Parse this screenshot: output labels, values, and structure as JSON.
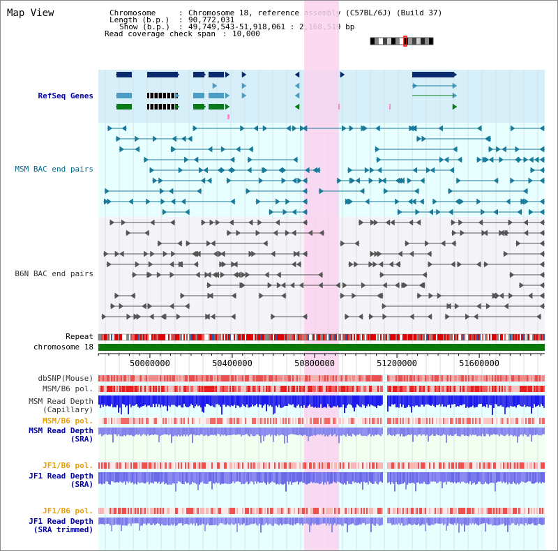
{
  "app": {
    "title": "Map View"
  },
  "header": {
    "chromosome_label": "Chromosome",
    "chromosome_value": "Chromosome 18, reference assembly (C57BL/6J) (Build 37)",
    "length_label": "Length (b.p.)",
    "length_value": "90,772,031",
    "show_label": "Show (b.p.)",
    "show_value": "49,749,543-51,918,061 : 2,168,519 bp",
    "coverage_label": "Read coverage check span",
    "coverage_value": "10,000",
    "sep": ":"
  },
  "colors": {
    "gene_band": "#d6eff9",
    "msm_band": "#e8ffff",
    "b6n_band": "#f4f4f8",
    "lower_band": "#e8ffff",
    "highlight": "#f9d2ee",
    "refseq_dark": "#0a2a6e",
    "refseq_light": "#4d9cc4",
    "refseq_black": "#000000",
    "refseq_green": "#0a7a1a",
    "msm_pair": "#1a7a9a",
    "b6n_pair": "#555555",
    "chrom_bar": "#0b7a0b",
    "label_blue": "#0000aa",
    "label_teal": "#00688b",
    "label_gray": "#333333",
    "label_orange": "#e8a000"
  },
  "tracks": {
    "refseq": "RefSeq Genes",
    "msm_bac": "MSM BAC end pairs",
    "b6n_bac": "B6N BAC end pairs",
    "repeat": "Repeat",
    "chromosome": "chromosome 18",
    "dbsnp": "dbSNP(Mouse)",
    "msm_b6_pol": "MSM/B6 pol.",
    "msm_depth_cap_1": "MSM Read Depth",
    "msm_depth_cap_2": "(Capillary)",
    "msm_b6_pol_sra": "MSM/B6 pol.",
    "msm_depth_sra_1": "MSM Read Depth",
    "msm_depth_sra_2": "(SRA)",
    "jf1_b6_pol": "JF1/B6 pol.",
    "jf1_depth_1": "JF1 Read Depth",
    "jf1_depth_2": "(SRA)",
    "jf1_b6_pol_2": "JF1/B6 pol.",
    "jf1_depth_trim_1": "JF1 Read Depth",
    "jf1_depth_trim_2": "(SRA trimmed)"
  },
  "axis": {
    "ticks": [
      "50000000",
      "50400000",
      "50800000",
      "51200000",
      "51600000"
    ],
    "tick_values": [
      50000000,
      50400000,
      50800000,
      51200000,
      51600000
    ],
    "range": [
      49749543,
      51918061
    ]
  }
}
